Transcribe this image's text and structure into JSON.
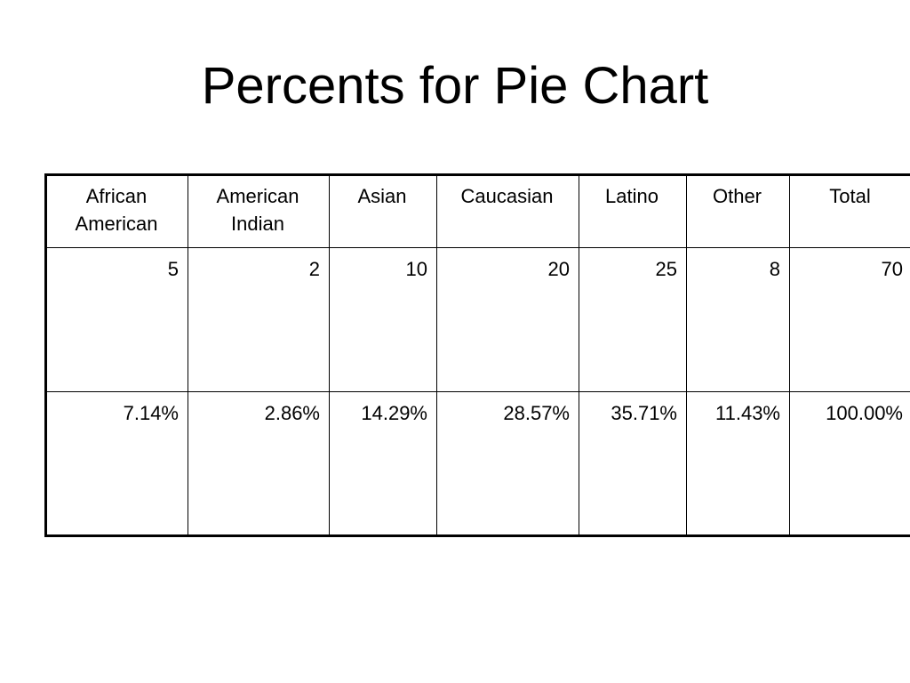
{
  "slide": {
    "title": "Percents for Pie Chart"
  },
  "table": {
    "headers": [
      "African American",
      "American Indian",
      "Asian",
      "Caucasian",
      "Latino",
      "Other",
      "Total"
    ],
    "rows": [
      [
        "5",
        "2",
        "10",
        "20",
        "25",
        "8",
        "70"
      ],
      [
        "7.14%",
        "2.86%",
        "14.29%",
        "28.57%",
        "35.71%",
        "11.43%",
        "100.00%"
      ]
    ]
  }
}
